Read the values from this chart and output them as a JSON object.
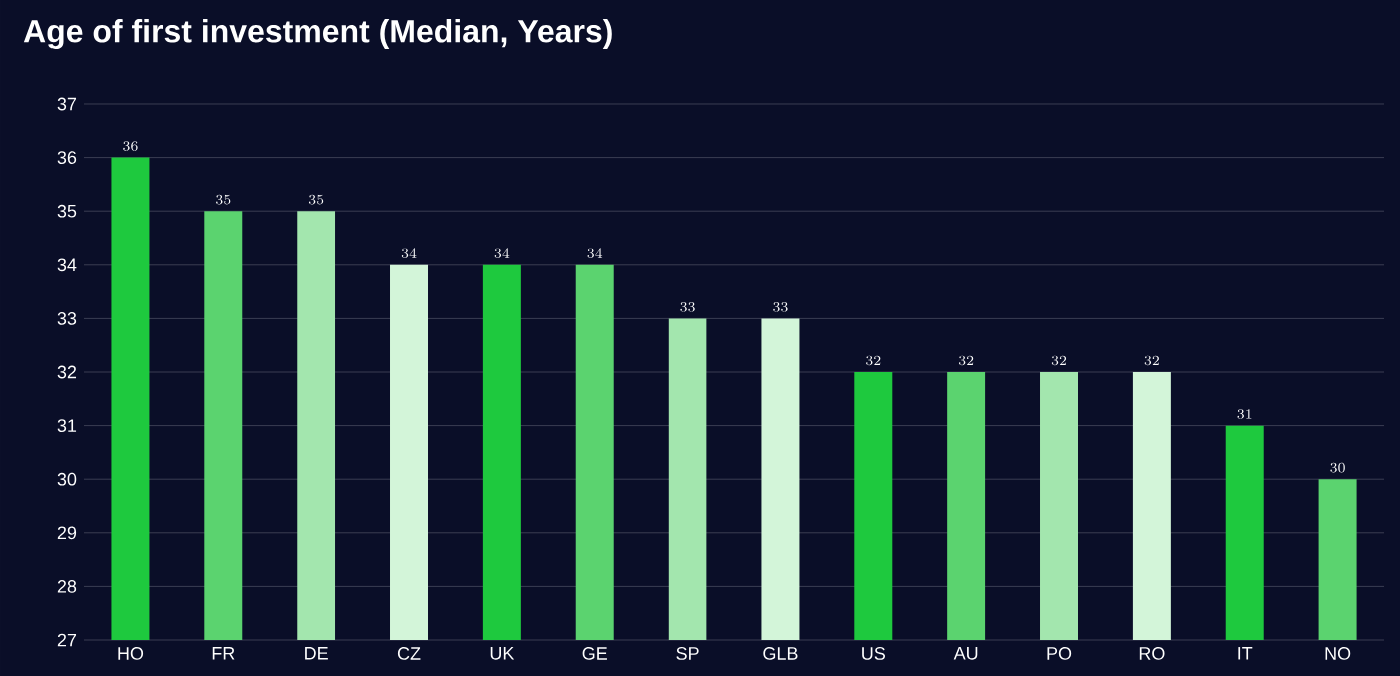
{
  "chart_data": {
    "type": "bar",
    "title": "Age of first investment (Median, Years)",
    "categories": [
      "HO",
      "FR",
      "DE",
      "CZ",
      "UK",
      "GE",
      "SP",
      "GLB",
      "US",
      "AU",
      "PO",
      "RO",
      "IT",
      "NO"
    ],
    "values": [
      36,
      35,
      35,
      34,
      34,
      34,
      33,
      33,
      32,
      32,
      32,
      32,
      31,
      30
    ],
    "colors": [
      "#1ec93e",
      "#5bd36f",
      "#a3e6ae",
      "#d3f5d9",
      "#1ec93e",
      "#5bd36f",
      "#a3e6ae",
      "#d3f5d9",
      "#1ec93e",
      "#5bd36f",
      "#a3e6ae",
      "#d3f5d9",
      "#1ec93e",
      "#5bd36f"
    ],
    "ylim": [
      27,
      37
    ],
    "yticks": [
      27,
      28,
      29,
      30,
      31,
      32,
      33,
      34,
      35,
      36,
      37
    ],
    "grid": "y",
    "data_labels": true
  }
}
